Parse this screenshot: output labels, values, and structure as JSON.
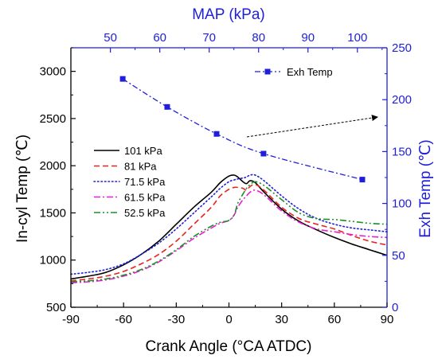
{
  "chart_data": {
    "type": "line",
    "left_axis": {
      "label": "In-cyl Temp (℃)",
      "range": [
        500,
        3250
      ],
      "ticks": [
        500,
        1000,
        1500,
        2000,
        2500,
        3000
      ]
    },
    "bottom_axis": {
      "label": "Crank Angle (°CA ATDC)",
      "range": [
        -90,
        90
      ],
      "ticks": [
        -90,
        -60,
        -30,
        0,
        30,
        60,
        90
      ]
    },
    "top_axis": {
      "label": "MAP (kPa)",
      "range": [
        42,
        106
      ],
      "ticks": [
        50,
        60,
        70,
        80,
        90,
        100
      ]
    },
    "right_axis": {
      "label": "Exh Temp (℃)",
      "range": [
        0,
        250
      ],
      "ticks": [
        0,
        50,
        100,
        150,
        200,
        250
      ]
    },
    "legend": {
      "placement": "center-left",
      "entries": [
        "101 kPa",
        "81 kPa",
        "71.5 kPa",
        "61.5 kPa",
        "52.5 kPa"
      ]
    },
    "exh_legend": {
      "placement": "top-right",
      "label": "Exh Temp"
    },
    "series": [
      {
        "name": "101 kPa",
        "color": "#000000",
        "dash": "solid",
        "x": [
          -90,
          -80,
          -70,
          -60,
          -50,
          -40,
          -30,
          -20,
          -10,
          -5,
          0,
          3,
          5,
          8,
          10,
          12,
          15,
          20,
          30,
          40,
          50,
          60,
          70,
          80,
          90
        ],
        "y": [
          800,
          830,
          870,
          950,
          1060,
          1200,
          1380,
          1560,
          1720,
          1820,
          1890,
          1900,
          1880,
          1830,
          1810,
          1840,
          1820,
          1720,
          1540,
          1410,
          1320,
          1240,
          1170,
          1110,
          1050
        ]
      },
      {
        "name": "81 kPa",
        "color": "#e8231e",
        "dash": "dashed",
        "x": [
          -90,
          -80,
          -70,
          -60,
          -50,
          -40,
          -30,
          -20,
          -10,
          -5,
          0,
          3,
          5,
          8,
          10,
          12,
          15,
          20,
          30,
          40,
          50,
          60,
          70,
          80,
          90
        ],
        "y": [
          780,
          800,
          830,
          880,
          960,
          1060,
          1200,
          1380,
          1560,
          1680,
          1750,
          1770,
          1770,
          1760,
          1740,
          1780,
          1800,
          1740,
          1560,
          1440,
          1380,
          1330,
          1260,
          1200,
          1160
        ]
      },
      {
        "name": "71.5 kPa",
        "color": "#1f1fd9",
        "dash": "dotted",
        "x": [
          -90,
          -80,
          -70,
          -60,
          -50,
          -40,
          -30,
          -20,
          -10,
          -5,
          0,
          3,
          5,
          8,
          10,
          12,
          15,
          20,
          30,
          40,
          50,
          60,
          70,
          80,
          90
        ],
        "y": [
          850,
          870,
          900,
          960,
          1060,
          1180,
          1330,
          1500,
          1670,
          1760,
          1830,
          1850,
          1860,
          1870,
          1880,
          1900,
          1900,
          1840,
          1680,
          1540,
          1440,
          1380,
          1340,
          1320,
          1300
        ]
      },
      {
        "name": "61.5 kPa",
        "color": "#e81ed2",
        "dash": "dashdot",
        "x": [
          -90,
          -80,
          -70,
          -60,
          -50,
          -40,
          -30,
          -20,
          -10,
          -5,
          0,
          3,
          5,
          8,
          10,
          12,
          15,
          20,
          30,
          40,
          50,
          60,
          70,
          80,
          90
        ],
        "y": [
          760,
          770,
          790,
          830,
          890,
          980,
          1100,
          1230,
          1340,
          1390,
          1420,
          1480,
          1560,
          1640,
          1680,
          1720,
          1740,
          1690,
          1520,
          1400,
          1330,
          1300,
          1270,
          1250,
          1240
        ]
      },
      {
        "name": "52.5 kPa",
        "color": "#1a8f2a",
        "dash": "dashdotdot",
        "x": [
          -90,
          -80,
          -70,
          -60,
          -50,
          -40,
          -30,
          -20,
          -10,
          -5,
          0,
          3,
          5,
          8,
          10,
          12,
          15,
          20,
          30,
          40,
          50,
          60,
          70,
          80,
          90
        ],
        "y": [
          770,
          780,
          800,
          840,
          900,
          990,
          1110,
          1250,
          1360,
          1400,
          1420,
          1480,
          1600,
          1700,
          1760,
          1800,
          1830,
          1790,
          1640,
          1500,
          1440,
          1430,
          1410,
          1390,
          1380
        ]
      }
    ],
    "exh_series": {
      "name": "Exh Temp",
      "color": "#1f1fd9",
      "axis": "top-right",
      "x": [
        52.5,
        61.5,
        71.5,
        81,
        101
      ],
      "y": [
        220,
        193,
        167,
        148,
        123
      ]
    }
  }
}
